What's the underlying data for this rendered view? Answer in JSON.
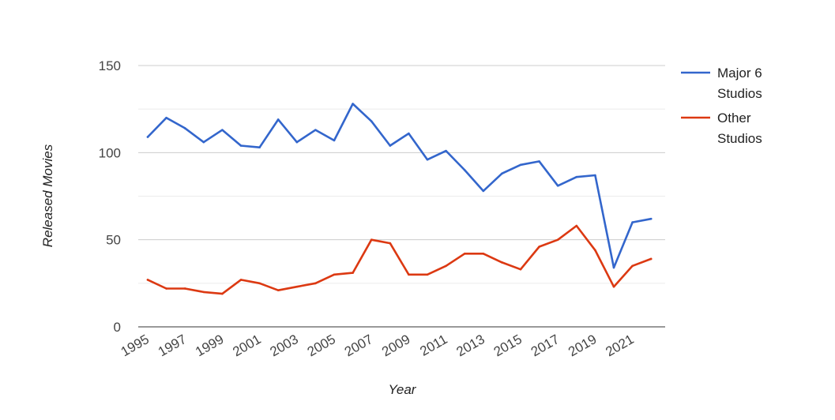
{
  "chart_data": {
    "type": "line",
    "title": "",
    "xlabel": "Year",
    "ylabel": "Released Movies",
    "x": [
      1995,
      1996,
      1997,
      1998,
      1999,
      2000,
      2001,
      2002,
      2003,
      2004,
      2005,
      2006,
      2007,
      2008,
      2009,
      2010,
      2011,
      2012,
      2013,
      2014,
      2015,
      2016,
      2017,
      2018,
      2019,
      2020,
      2021,
      2022
    ],
    "x_tick_labels": [
      "1995",
      "1997",
      "1999",
      "2001",
      "2003",
      "2005",
      "2007",
      "2009",
      "2011",
      "2013",
      "2015",
      "2017",
      "2019",
      "2021"
    ],
    "y_tick_labels": [
      "0",
      "50",
      "100",
      "150"
    ],
    "ylim": [
      0,
      150
    ],
    "grid": true,
    "legend_position": "right",
    "series": [
      {
        "name": "Major 6 Studios",
        "legend_lines": [
          "Major 6",
          "Studios"
        ],
        "color": "#3366cc",
        "values": [
          109,
          120,
          114,
          106,
          113,
          104,
          103,
          119,
          106,
          113,
          107,
          128,
          118,
          104,
          111,
          96,
          101,
          90,
          78,
          88,
          93,
          95,
          81,
          86,
          87,
          34,
          60,
          62
        ]
      },
      {
        "name": "Other Studios",
        "legend_lines": [
          "Other",
          "Studios"
        ],
        "color": "#dc3912",
        "values": [
          27,
          22,
          22,
          20,
          19,
          27,
          25,
          21,
          23,
          25,
          30,
          31,
          50,
          48,
          30,
          30,
          35,
          42,
          42,
          37,
          33,
          46,
          50,
          58,
          44,
          23,
          35,
          39
        ]
      }
    ]
  }
}
